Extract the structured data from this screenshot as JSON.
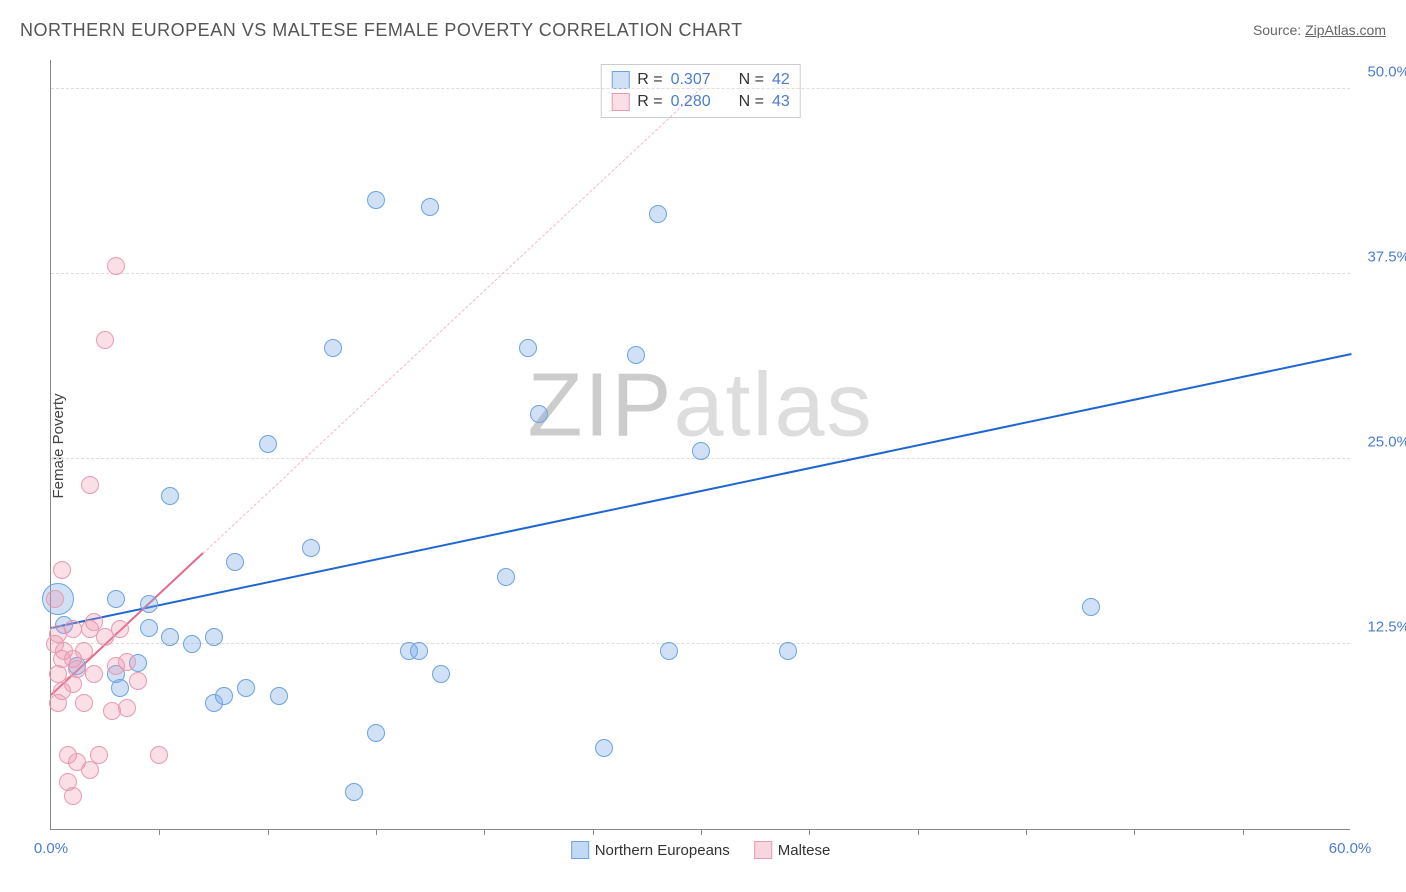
{
  "chart": {
    "type": "scatter",
    "title": "NORTHERN EUROPEAN VS MALTESE FEMALE POVERTY CORRELATION CHART",
    "source_label": "Source:",
    "source_name": "ZipAtlas.com",
    "ylabel": "Female Poverty",
    "watermark_bold": "ZIP",
    "watermark_light": "atlas",
    "background_color": "#ffffff",
    "axis_color": "#888888",
    "grid_color": "#dddddd",
    "tick_label_color": "#4b7dd1",
    "text_color": "#555555",
    "xlim": [
      0,
      60
    ],
    "ylim": [
      0,
      52
    ],
    "x_tick_marks": [
      5,
      10,
      15,
      20,
      25,
      30,
      35,
      40,
      45,
      50,
      55
    ],
    "x_label_min": "0.0%",
    "x_label_max": "60.0%",
    "y_gridlines": [
      {
        "value": 12.5,
        "label": "12.5%"
      },
      {
        "value": 25.0,
        "label": "25.0%"
      },
      {
        "value": 37.5,
        "label": "37.5%"
      },
      {
        "value": 50.0,
        "label": "50.0%"
      }
    ],
    "series": [
      {
        "name": "Northern Europeans",
        "fill_color": "rgba(120,170,230,0.35)",
        "stroke_color": "#6da3e0",
        "trend_color": "#1f66d0",
        "trend_solid_color": "#1f66d0",
        "trend_dash_color": "#a9c7ee",
        "R_label": "R =",
        "R_value": "0.307",
        "N_label": "N =",
        "N_value": "42",
        "default_radius": 9,
        "trend": {
          "x1": 0,
          "y1": 13.5,
          "x2": 60,
          "y2": 32.0,
          "solid_until_x": 60
        },
        "points": [
          {
            "x": 0.3,
            "y": 15.5,
            "r": 16
          },
          {
            "x": 0.6,
            "y": 13.8
          },
          {
            "x": 1.2,
            "y": 11.0
          },
          {
            "x": 3.0,
            "y": 10.5
          },
          {
            "x": 3.0,
            "y": 15.5
          },
          {
            "x": 3.2,
            "y": 9.5
          },
          {
            "x": 4.0,
            "y": 11.2
          },
          {
            "x": 4.5,
            "y": 13.6
          },
          {
            "x": 4.5,
            "y": 15.2
          },
          {
            "x": 5.5,
            "y": 13.0
          },
          {
            "x": 5.5,
            "y": 22.5
          },
          {
            "x": 6.5,
            "y": 12.5
          },
          {
            "x": 7.5,
            "y": 8.5
          },
          {
            "x": 7.5,
            "y": 13.0
          },
          {
            "x": 8.0,
            "y": 9.0
          },
          {
            "x": 8.5,
            "y": 18.0
          },
          {
            "x": 9.0,
            "y": 9.5
          },
          {
            "x": 10.5,
            "y": 9.0
          },
          {
            "x": 10.0,
            "y": 26.0
          },
          {
            "x": 12.0,
            "y": 19.0
          },
          {
            "x": 13.0,
            "y": 32.5
          },
          {
            "x": 14.0,
            "y": 2.5
          },
          {
            "x": 15.0,
            "y": 42.5
          },
          {
            "x": 15.0,
            "y": 6.5
          },
          {
            "x": 16.5,
            "y": 12.0
          },
          {
            "x": 17.0,
            "y": 12.0
          },
          {
            "x": 17.5,
            "y": 42.0
          },
          {
            "x": 18.0,
            "y": 10.5
          },
          {
            "x": 21.0,
            "y": 17.0
          },
          {
            "x": 22.0,
            "y": 32.5
          },
          {
            "x": 22.5,
            "y": 28.0
          },
          {
            "x": 25.5,
            "y": 5.5
          },
          {
            "x": 27.0,
            "y": 32.0
          },
          {
            "x": 28.0,
            "y": 41.5
          },
          {
            "x": 28.5,
            "y": 12.0
          },
          {
            "x": 30.0,
            "y": 25.5
          },
          {
            "x": 34.0,
            "y": 12.0
          },
          {
            "x": 48.0,
            "y": 15.0
          }
        ]
      },
      {
        "name": "Maltese",
        "fill_color": "rgba(240,150,175,0.30)",
        "stroke_color": "#e99ab1",
        "trend_color": "#e36a8b",
        "trend_solid_color": "#e36a8b",
        "trend_dash_color": "#f2b7c8",
        "R_label": "R =",
        "R_value": "0.280",
        "N_label": "N =",
        "N_value": "43",
        "default_radius": 9,
        "trend": {
          "x1": 0,
          "y1": 9.0,
          "x2": 30,
          "y2": 50.0,
          "solid_until_x": 7
        },
        "points": [
          {
            "x": 0.2,
            "y": 15.5
          },
          {
            "x": 0.2,
            "y": 12.5
          },
          {
            "x": 0.3,
            "y": 10.5
          },
          {
            "x": 0.3,
            "y": 13.2
          },
          {
            "x": 0.3,
            "y": 8.5
          },
          {
            "x": 0.5,
            "y": 11.5
          },
          {
            "x": 0.5,
            "y": 9.3
          },
          {
            "x": 0.5,
            "y": 17.5
          },
          {
            "x": 0.6,
            "y": 12.0
          },
          {
            "x": 0.8,
            "y": 5.0
          },
          {
            "x": 0.8,
            "y": 3.2
          },
          {
            "x": 1.0,
            "y": 2.2
          },
          {
            "x": 1.0,
            "y": 9.8
          },
          {
            "x": 1.0,
            "y": 13.5
          },
          {
            "x": 1.0,
            "y": 11.5
          },
          {
            "x": 1.2,
            "y": 4.5
          },
          {
            "x": 1.2,
            "y": 10.8
          },
          {
            "x": 1.5,
            "y": 8.5
          },
          {
            "x": 1.5,
            "y": 12.0
          },
          {
            "x": 1.8,
            "y": 4.0
          },
          {
            "x": 1.8,
            "y": 13.5
          },
          {
            "x": 1.8,
            "y": 23.2
          },
          {
            "x": 2.0,
            "y": 10.5
          },
          {
            "x": 2.0,
            "y": 14.0
          },
          {
            "x": 2.2,
            "y": 5.0
          },
          {
            "x": 2.5,
            "y": 33.0
          },
          {
            "x": 2.5,
            "y": 13.0
          },
          {
            "x": 2.8,
            "y": 8.0
          },
          {
            "x": 3.0,
            "y": 11.0
          },
          {
            "x": 3.0,
            "y": 38.0
          },
          {
            "x": 3.2,
            "y": 13.5
          },
          {
            "x": 3.5,
            "y": 11.3
          },
          {
            "x": 3.5,
            "y": 8.2
          },
          {
            "x": 4.0,
            "y": 10.0
          },
          {
            "x": 5.0,
            "y": 5.0
          }
        ]
      }
    ],
    "legend_bottom": [
      {
        "label": "Northern Europeans",
        "fill": "rgba(120,170,230,0.45)",
        "stroke": "#6da3e0"
      },
      {
        "label": "Maltese",
        "fill": "rgba(240,150,175,0.40)",
        "stroke": "#e99ab1"
      }
    ]
  }
}
